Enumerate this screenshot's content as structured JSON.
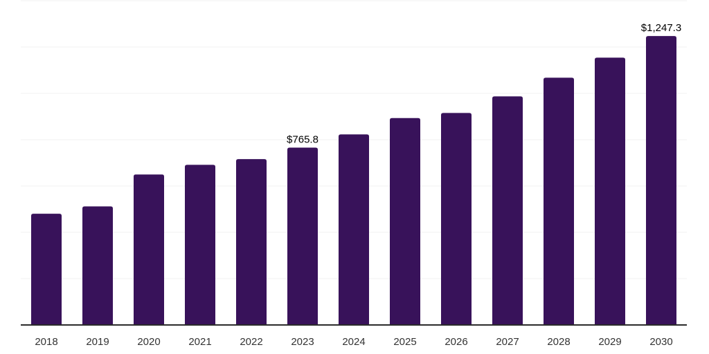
{
  "chart_data": {
    "type": "bar",
    "title": "",
    "xlabel": "",
    "ylabel": "",
    "categories": [
      "2018",
      "2019",
      "2020",
      "2021",
      "2022",
      "2023",
      "2024",
      "2025",
      "2026",
      "2027",
      "2028",
      "2029",
      "2030"
    ],
    "values": [
      480.4,
      511.9,
      649.6,
      691.4,
      716.2,
      765.8,
      822.8,
      893.2,
      915.3,
      987.0,
      1067.6,
      1154.1,
      1247.3
    ],
    "value_labels": [
      {
        "category": "2023",
        "text": "$765.8"
      },
      {
        "category": "2030",
        "text": "$1,247.3"
      }
    ],
    "ylim": [
      0,
      1400
    ],
    "gridline_step": 200,
    "grid": "horizontal",
    "legend": "none",
    "colors": {
      "bar": "#38125a",
      "gridline": "#f1f1f1",
      "axis_line": "#2b2b2b",
      "tick_label": "#333333",
      "value_label": "#000000",
      "background": "#ffffff"
    }
  }
}
